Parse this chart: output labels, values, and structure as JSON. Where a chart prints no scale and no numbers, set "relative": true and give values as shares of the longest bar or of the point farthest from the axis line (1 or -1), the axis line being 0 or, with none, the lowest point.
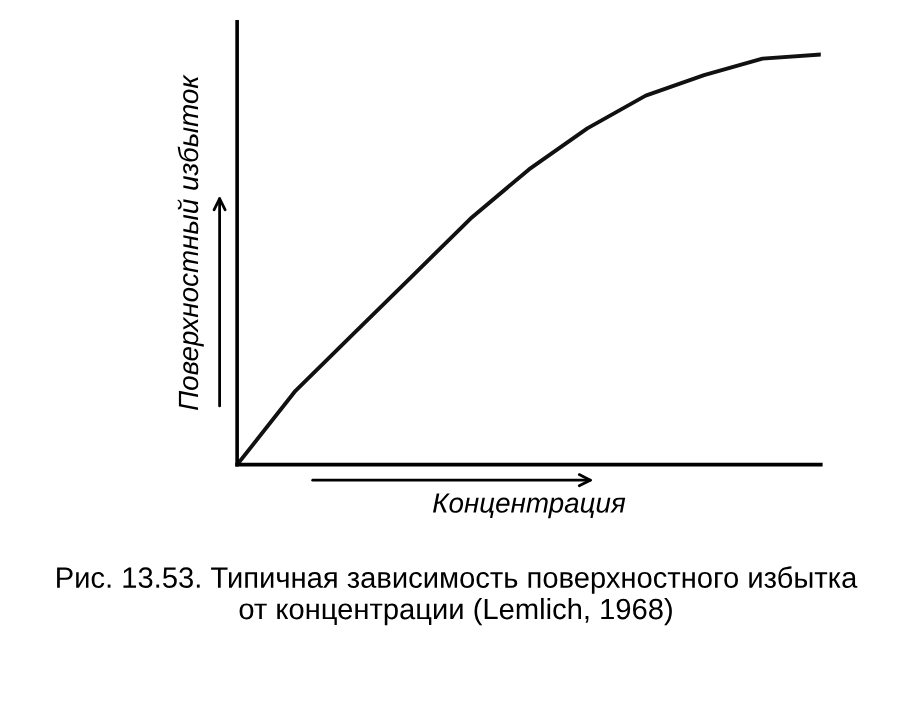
{
  "chart_data": {
    "type": "line",
    "relative": true,
    "xlabel": "Концентрация",
    "ylabel": "Поверхностный избыток",
    "categories": [
      null,
      null,
      null,
      null,
      null,
      null,
      null,
      null,
      null,
      null,
      null
    ],
    "series": [
      {
        "color": "#111111",
        "values": [
          0,
          0.18,
          0.32,
          0.46,
          0.6,
          0.72,
          0.82,
          0.9,
          0.95,
          0.99,
          1.0
        ]
      }
    ],
    "legend": false,
    "marker": "none",
    "line_style": "solid",
    "annotations": [
      "Рис. 13.53. Типичная зависимость поверхностного избытка от концентрации (Lemlich, 1968)"
    ]
  }
}
